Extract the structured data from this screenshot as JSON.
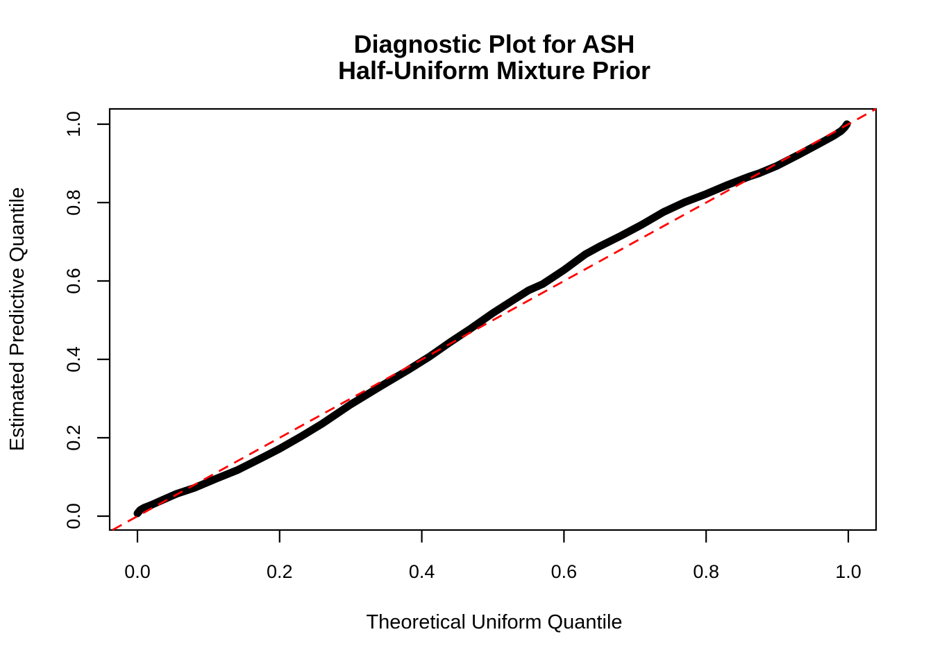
{
  "chart_data": {
    "type": "line",
    "subtype": "qq-plot",
    "title_line1": "Diagnostic Plot for ASH",
    "title_line2": "Half-Uniform Mixture Prior",
    "xlabel": "Theoretical Uniform Quantile",
    "ylabel": "Estimated Predictive Quantile",
    "xlim": [
      -0.04,
      1.04
    ],
    "ylim": [
      -0.04,
      1.04
    ],
    "grid": false,
    "legend": "none",
    "x_ticks": [
      0.0,
      0.2,
      0.4,
      0.6,
      0.8,
      1.0
    ],
    "y_ticks": [
      0.0,
      0.2,
      0.4,
      0.6,
      0.8,
      1.0
    ],
    "x_tick_labels": [
      "0.0",
      "0.2",
      "0.4",
      "0.6",
      "0.8",
      "1.0"
    ],
    "y_tick_labels": [
      "0.0",
      "0.2",
      "0.4",
      "0.6",
      "0.8",
      "1.0"
    ],
    "colors": {
      "curve": "#000000",
      "reference": "#FF0000",
      "frame": "#000000"
    },
    "series": [
      {
        "name": "estimated-predictive-quantiles",
        "style": "thick-solid",
        "color": "#000000",
        "points": [
          [
            0.0,
            0.007
          ],
          [
            0.004,
            0.016
          ],
          [
            0.01,
            0.022
          ],
          [
            0.02,
            0.029
          ],
          [
            0.035,
            0.041
          ],
          [
            0.055,
            0.057
          ],
          [
            0.08,
            0.072
          ],
          [
            0.11,
            0.095
          ],
          [
            0.14,
            0.117
          ],
          [
            0.17,
            0.144
          ],
          [
            0.2,
            0.172
          ],
          [
            0.23,
            0.203
          ],
          [
            0.26,
            0.236
          ],
          [
            0.3,
            0.285
          ],
          [
            0.34,
            0.329
          ],
          [
            0.38,
            0.372
          ],
          [
            0.41,
            0.406
          ],
          [
            0.44,
            0.444
          ],
          [
            0.47,
            0.48
          ],
          [
            0.5,
            0.518
          ],
          [
            0.53,
            0.553
          ],
          [
            0.55,
            0.576
          ],
          [
            0.57,
            0.592
          ],
          [
            0.6,
            0.628
          ],
          [
            0.63,
            0.668
          ],
          [
            0.65,
            0.688
          ],
          [
            0.68,
            0.715
          ],
          [
            0.71,
            0.744
          ],
          [
            0.74,
            0.776
          ],
          [
            0.77,
            0.801
          ],
          [
            0.8,
            0.822
          ],
          [
            0.83,
            0.845
          ],
          [
            0.86,
            0.866
          ],
          [
            0.875,
            0.875
          ],
          [
            0.9,
            0.894
          ],
          [
            0.93,
            0.922
          ],
          [
            0.96,
            0.951
          ],
          [
            0.98,
            0.971
          ],
          [
            0.99,
            0.983
          ],
          [
            0.995,
            0.992
          ],
          [
            0.998,
            1.0
          ]
        ]
      },
      {
        "name": "identity-reference-line",
        "style": "dashed",
        "color": "#FF0000",
        "points": [
          [
            -0.035,
            -0.035
          ],
          [
            1.039,
            1.039
          ]
        ]
      }
    ]
  }
}
